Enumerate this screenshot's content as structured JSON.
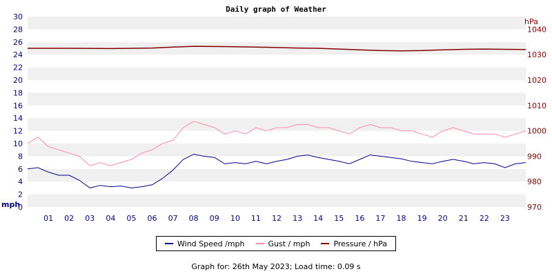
{
  "chart_data": {
    "type": "line",
    "title": "Daily graph of Weather",
    "left_axis": {
      "unit": "mph",
      "ylim": [
        0,
        30
      ],
      "ticks": [
        0,
        2,
        4,
        6,
        8,
        10,
        12,
        14,
        16,
        18,
        20,
        22,
        24,
        26,
        28,
        30
      ]
    },
    "right_axis": {
      "unit": "hPa",
      "ylim": [
        970,
        1045
      ],
      "ticks": [
        970,
        980,
        990,
        1000,
        1010,
        1020,
        1030,
        1040
      ]
    },
    "x_tick_labels": [
      "01",
      "02",
      "03",
      "04",
      "05",
      "06",
      "07",
      "08",
      "09",
      "10",
      "11",
      "12",
      "13",
      "14",
      "15",
      "16",
      "17",
      "18",
      "19",
      "20",
      "21",
      "22",
      "23"
    ],
    "x_range_hours": [
      0,
      24
    ],
    "grid": "horizontal alternating bands",
    "series": [
      {
        "name": "Wind Speed /mph",
        "color": "#00008b",
        "axis": "left",
        "hours": [
          0,
          0.5,
          1,
          1.5,
          2,
          2.5,
          3,
          3.5,
          4,
          4.5,
          5,
          5.5,
          6,
          6.5,
          7,
          7.5,
          8,
          8.5,
          9,
          9.5,
          10,
          10.5,
          11,
          11.5,
          12,
          12.5,
          13,
          13.5,
          14,
          14.5,
          15,
          15.5,
          16,
          16.5,
          17,
          17.5,
          18,
          18.5,
          19,
          19.5,
          20,
          20.5,
          21,
          21.5,
          22,
          22.5,
          23,
          23.5,
          24
        ],
        "values": [
          6,
          6.2,
          5.5,
          5,
          5,
          4.2,
          3,
          3.4,
          3.2,
          3.3,
          3,
          3.2,
          3.5,
          4.5,
          5.8,
          7.5,
          8.3,
          8,
          7.8,
          6.8,
          7,
          6.8,
          7.2,
          6.8,
          7.2,
          7.5,
          8,
          8.2,
          7.8,
          7.5,
          7.2,
          6.8,
          7.5,
          8.2,
          8,
          7.8,
          7.6,
          7.2,
          7,
          6.8,
          7.2,
          7.5,
          7.2,
          6.8,
          7,
          6.8,
          6.2,
          6.8,
          7
        ]
      },
      {
        "name": "Gust / mph",
        "color": "#ff88aa",
        "axis": "left",
        "hours": [
          0,
          0.5,
          1,
          1.5,
          2,
          2.5,
          3,
          3.5,
          4,
          4.5,
          5,
          5.5,
          6,
          6.5,
          7,
          7.5,
          8,
          8.5,
          9,
          9.5,
          10,
          10.5,
          11,
          11.5,
          12,
          12.5,
          13,
          13.5,
          14,
          14.5,
          15,
          15.5,
          16,
          16.5,
          17,
          17.5,
          18,
          18.5,
          19,
          19.5,
          20,
          20.5,
          21,
          21.5,
          22,
          22.5,
          23,
          23.5,
          24
        ],
        "values": [
          10,
          11,
          9.5,
          9,
          8.5,
          8,
          6.5,
          7,
          6.5,
          7,
          7.5,
          8.5,
          9,
          10,
          10.5,
          12.5,
          13.5,
          13,
          12.5,
          11.5,
          12,
          11.5,
          12.5,
          12,
          12.5,
          12.5,
          13,
          13,
          12.5,
          12.5,
          12,
          11.5,
          12.5,
          13,
          12.5,
          12.5,
          12,
          12,
          11.5,
          11,
          12,
          12.5,
          12,
          11.5,
          11.5,
          11.5,
          11,
          11.5,
          12
        ]
      },
      {
        "name": "Pressure / hPa",
        "color": "#800000",
        "axis": "right",
        "hours": [
          0,
          2,
          4,
          6,
          7,
          8,
          9,
          10,
          11,
          12,
          13,
          14,
          15,
          16,
          17,
          18,
          19,
          20,
          21,
          22,
          23,
          24
        ],
        "values": [
          1032.5,
          1032.5,
          1032.4,
          1032.6,
          1033,
          1033.3,
          1033.2,
          1033.1,
          1033,
          1032.8,
          1032.6,
          1032.5,
          1032.2,
          1031.9,
          1031.6,
          1031.5,
          1031.6,
          1031.9,
          1032.1,
          1032.2,
          1032.1,
          1032
        ]
      }
    ]
  },
  "footer": "Graph for: 26th May 2023; Load time: 0.09 s"
}
